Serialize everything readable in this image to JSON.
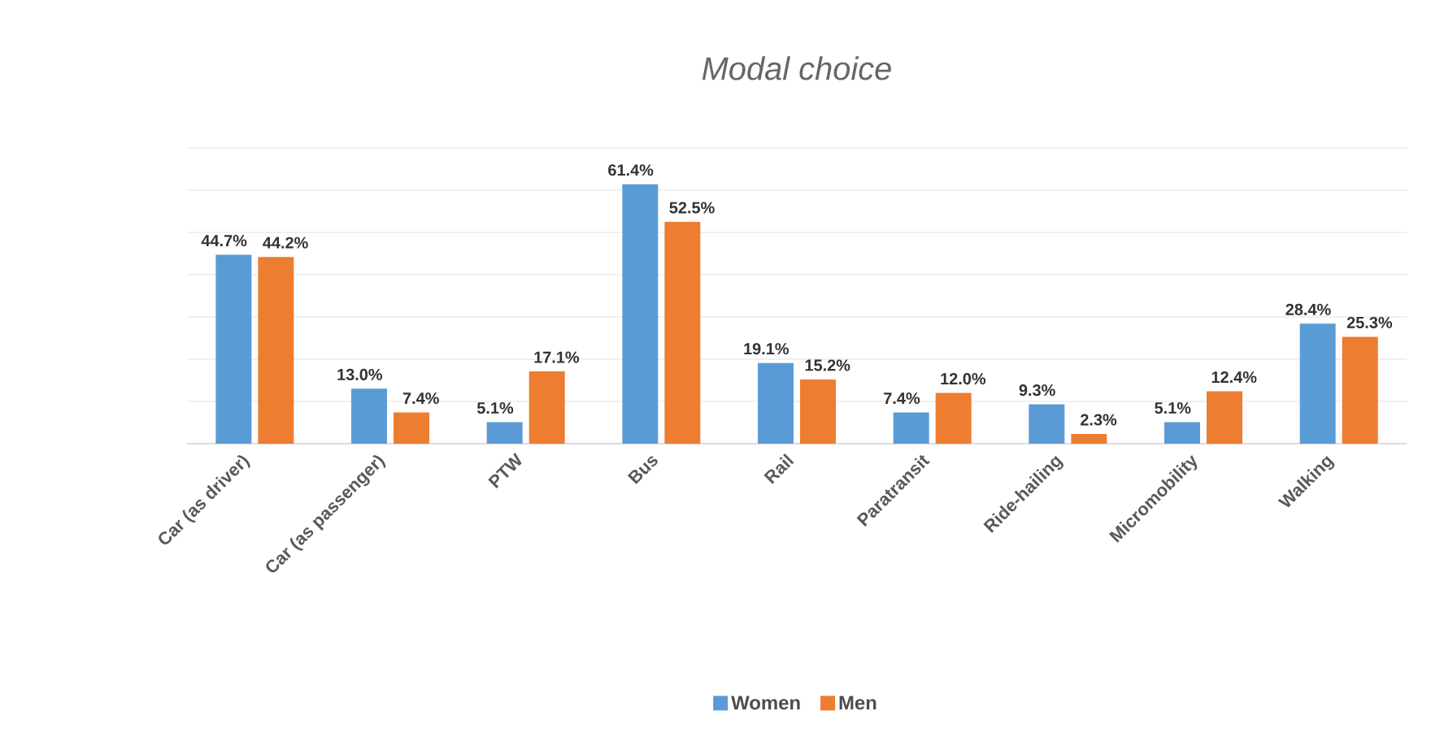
{
  "chart_data": {
    "type": "bar",
    "title": "Modal choice",
    "categories": [
      "Car (as driver)",
      "Car (as passenger)",
      "PTW",
      "Bus",
      "Rail",
      "Paratransit",
      "Ride-hailing",
      "Micromobility",
      "Walking"
    ],
    "series": [
      {
        "name": "Women",
        "color": "#5b9bd5",
        "values": [
          44.7,
          13.0,
          5.1,
          61.4,
          19.1,
          7.4,
          9.3,
          5.1,
          28.4
        ],
        "value_labels": [
          "44.7%",
          "13.0%",
          "5.1%",
          "61.4%",
          "19.1%",
          "7.4%",
          "9.3%",
          "5.1%",
          "28.4%"
        ]
      },
      {
        "name": "Men",
        "color": "#ed7d31",
        "values": [
          44.2,
          7.4,
          17.1,
          52.5,
          15.2,
          12.0,
          2.3,
          12.4,
          25.3
        ],
        "value_labels": [
          "44.2%",
          "7.4%",
          "17.1%",
          "52.5%",
          "15.2%",
          "12.0%",
          "2.3%",
          "12.4%",
          "25.3%"
        ]
      }
    ],
    "ylim": [
      0,
      70
    ],
    "yticks": [
      {
        "value": 0,
        "label": null
      },
      {
        "value": 10,
        "label": null
      },
      {
        "value": 20,
        "label": null
      },
      {
        "value": 30,
        "label": null
      },
      {
        "value": 40,
        "label": null
      },
      {
        "value": 50,
        "label": null
      },
      {
        "value": 60,
        "label": null
      },
      {
        "value": 70,
        "label": null
      }
    ],
    "tick_labels": "x",
    "grid": "y",
    "legend": "bottom"
  }
}
